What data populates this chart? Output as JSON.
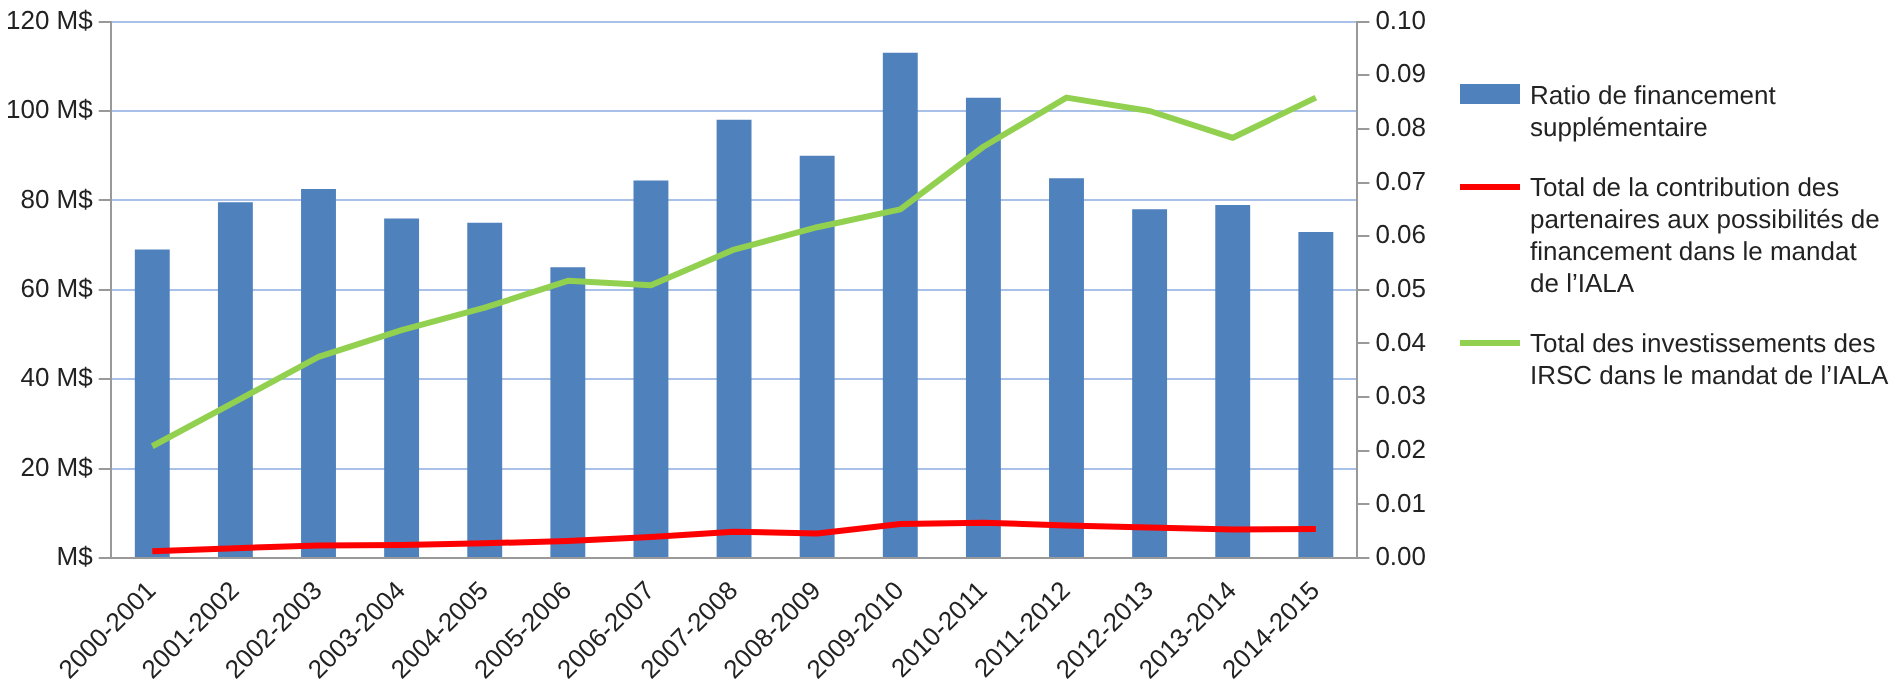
{
  "chart_data": {
    "type": "bar",
    "categories": [
      "2000-2001",
      "2001-2002",
      "2002-2003",
      "2003-2004",
      "2004-2005",
      "2005-2006",
      "2006-2007",
      "2007-2008",
      "2008-2009",
      "2009-2010",
      "2010-2011",
      "2011-2012",
      "2012-2013",
      "2013-2014",
      "2014-2015"
    ],
    "series": [
      {
        "name": "Ratio de financement supplémentaire",
        "axis": "y2",
        "color": "#4f81bd",
        "values": [
          0.0575,
          0.0663,
          0.0688,
          0.0633,
          0.0625,
          0.0542,
          0.0704,
          0.0817,
          0.075,
          0.0942,
          0.0858,
          0.0708,
          0.065,
          0.0658,
          0.0608
        ]
      },
      {
        "name": "Total de la contribution des partenaires aux possibilités de financement dans le mandat de l’IALA",
        "type": "line",
        "color": "#ff0000",
        "values": [
          1.5,
          2.2,
          2.8,
          2.9,
          3.3,
          3.8,
          4.7,
          5.9,
          5.5,
          7.6,
          7.9,
          7.3,
          6.8,
          6.4,
          6.5
        ]
      },
      {
        "name": "Total des investissements des IRSC dans le mandat de l’IALA",
        "type": "line",
        "color": "#92d050",
        "values": [
          25,
          35,
          45,
          51,
          56,
          62,
          61,
          69,
          74,
          78,
          92,
          103,
          100,
          94,
          103
        ]
      }
    ],
    "ylim": [
      0,
      120
    ],
    "yticks": [
      {
        "value": 0,
        "label": "M$"
      },
      {
        "value": 20,
        "label": "20 M$"
      },
      {
        "value": 40,
        "label": "40 M$"
      },
      {
        "value": 60,
        "label": "60 M$"
      },
      {
        "value": 80,
        "label": "80 M$"
      },
      {
        "value": 100,
        "label": "100 M$"
      },
      {
        "value": 120,
        "label": "120 M$"
      }
    ],
    "y2lim": [
      0,
      0.1
    ],
    "y2ticks": [
      {
        "value": 0,
        "label": "0.00"
      },
      {
        "value": 0.01,
        "label": "0.01"
      },
      {
        "value": 0.02,
        "label": "0.02"
      },
      {
        "value": 0.03,
        "label": "0.03"
      },
      {
        "value": 0.04,
        "label": "0.04"
      },
      {
        "value": 0.05,
        "label": "0.05"
      },
      {
        "value": 0.06,
        "label": "0.06"
      },
      {
        "value": 0.07,
        "label": "0.07"
      },
      {
        "value": 0.08,
        "label": "0.08"
      },
      {
        "value": 0.09,
        "label": "0.09"
      },
      {
        "value": 0.1,
        "label": "0.10"
      }
    ],
    "grid": "y",
    "legend": "right",
    "marker": "none"
  }
}
